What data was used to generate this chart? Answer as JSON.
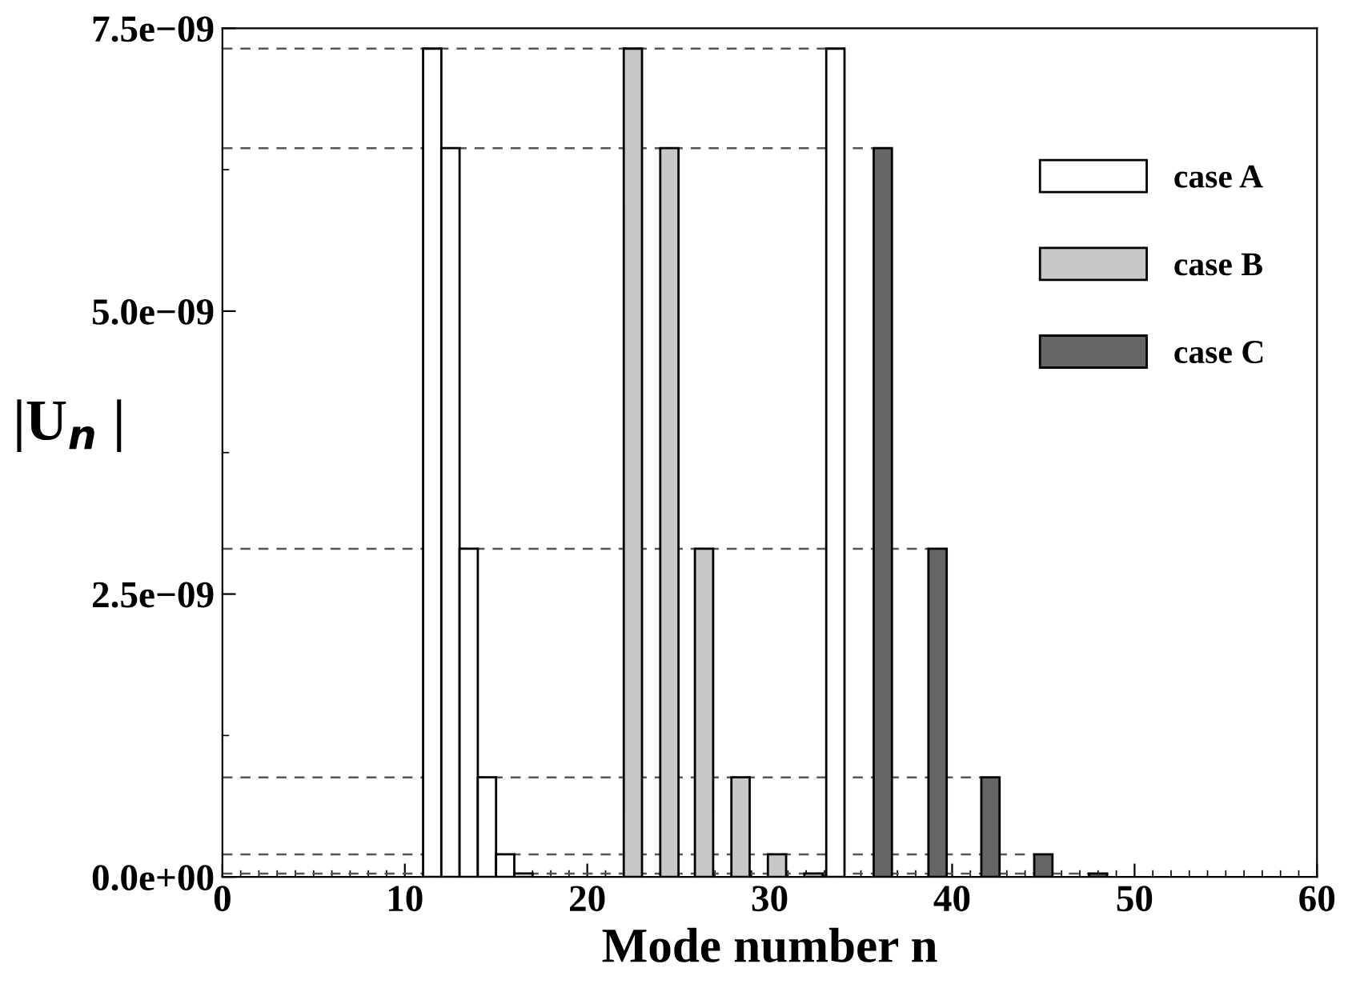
{
  "chart_data": {
    "type": "bar",
    "xlabel": "Mode number n",
    "ylabel": "|U$_{n}$ |",
    "xlim": [
      0,
      60
    ],
    "xticks": [
      0,
      10,
      20,
      30,
      40,
      50,
      60
    ],
    "ylim": [
      0,
      7.5e-09
    ],
    "yticks": [
      {
        "value": 0,
        "label": "0.0e+00"
      },
      {
        "value": 2.5e-09,
        "label": "2.5e−09"
      },
      {
        "value": 5e-09,
        "label": "5.0e−09"
      },
      {
        "value": 7.5e-09,
        "label": "7.5e−09"
      }
    ],
    "series": [
      {
        "name": "case A",
        "color": "#ffffff",
        "x": [
          11.5,
          12.5,
          13.5,
          14.5,
          15.5,
          16.5,
          33.6
        ],
        "values": [
          7.32e-09,
          6.44e-09,
          2.9e-09,
          8.8e-10,
          2e-10,
          3e-11,
          7.32e-09
        ]
      },
      {
        "name": "case B",
        "color": "#c8c8c8",
        "x": [
          22.5,
          24.5,
          26.4,
          28.4,
          30.4,
          32.4
        ],
        "values": [
          7.32e-09,
          6.44e-09,
          2.9e-09,
          8.8e-10,
          2e-10,
          3e-11
        ]
      },
      {
        "name": "case C",
        "color": "#666666",
        "x": [
          36.2,
          39.2,
          42.1,
          45.0,
          48.0
        ],
        "values": [
          6.44e-09,
          2.9e-09,
          8.8e-10,
          2e-10,
          3e-11
        ]
      }
    ],
    "ref_lines": [
      {
        "axis": "y",
        "value": 7.32e-09,
        "line_style": "dashed"
      },
      {
        "axis": "y",
        "value": 6.44e-09,
        "line_style": "dashed"
      },
      {
        "axis": "y",
        "value": 2.9e-09,
        "line_style": "dashed"
      },
      {
        "axis": "y",
        "value": 8.8e-10,
        "line_style": "dashed"
      },
      {
        "axis": "y",
        "value": 2e-10,
        "line_style": "dashed"
      },
      {
        "axis": "y",
        "value": 3e-11,
        "line_style": "dashed"
      }
    ],
    "legend": "top right",
    "grid": false
  }
}
